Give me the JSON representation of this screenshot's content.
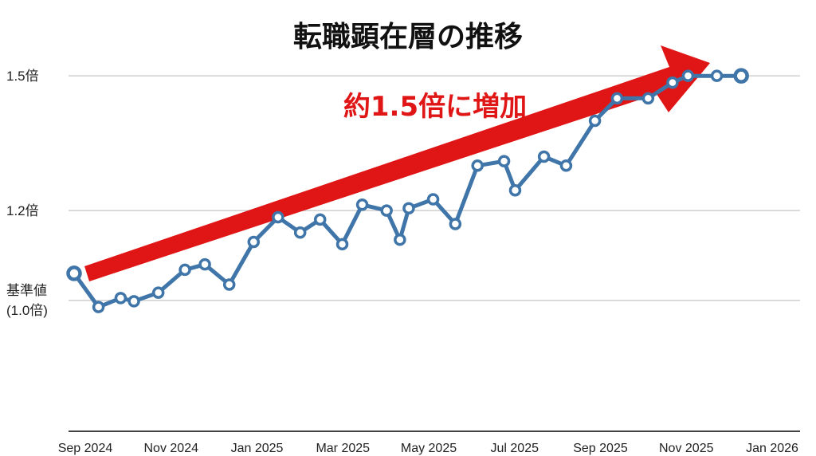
{
  "chart_data": {
    "type": "line",
    "title": "転職顕在層の推移",
    "annotation": "約1.5倍に増加",
    "x_tick_labels": [
      "Sep 2024",
      "Nov 2024",
      "Jan 2025",
      "Mar 2025",
      "May 2025",
      "Jul 2025",
      "Sep 2025",
      "Nov 2025",
      "Jan 2026"
    ],
    "y_ticks": [
      {
        "value": 1.0,
        "lines": [
          "基準値",
          "(1.0倍)"
        ]
      },
      {
        "value": 1.2,
        "lines": [
          "1.2倍"
        ]
      },
      {
        "value": 1.5,
        "lines": [
          "1.5倍"
        ]
      }
    ],
    "ylim": [
      0.71,
      1.598
    ],
    "xlim": [
      0,
      16
    ],
    "grid": true,
    "series": [
      {
        "color": "#3f75a8",
        "x": [
          0,
          0.55,
          1.05,
          1.35,
          1.9,
          2.5,
          2.95,
          3.5,
          4.05,
          4.6,
          5.1,
          5.55,
          6.05,
          6.5,
          7.05,
          7.35,
          7.55,
          8.1,
          8.6,
          9.1,
          9.7,
          9.95,
          10.6,
          11.1,
          11.75,
          12.25,
          12.95,
          13.5,
          13.85,
          14.5,
          15.05
        ],
        "values": [
          1.06,
          0.985,
          1.005,
          0.998,
          1.017,
          1.068,
          1.08,
          1.035,
          1.13,
          1.185,
          1.151,
          1.18,
          1.125,
          1.213,
          1.2,
          1.135,
          1.205,
          1.225,
          1.17,
          1.3,
          1.31,
          1.245,
          1.32,
          1.3,
          1.4,
          1.45,
          1.45,
          1.485,
          1.5,
          1.5,
          1.5
        ]
      }
    ],
    "line_color": "#3f75a8",
    "arrow_color": "#e01515"
  }
}
